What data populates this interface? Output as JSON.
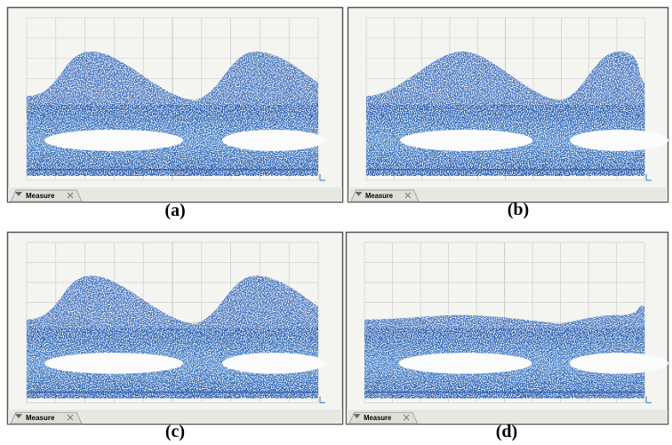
{
  "panels": [
    {
      "caption": "(a)",
      "tab": "Measure"
    },
    {
      "caption": "(b)",
      "tab": "Measure"
    },
    {
      "caption": "(c)",
      "tab": "Measure"
    },
    {
      "caption": "(d)",
      "tab": "Measure"
    }
  ]
}
